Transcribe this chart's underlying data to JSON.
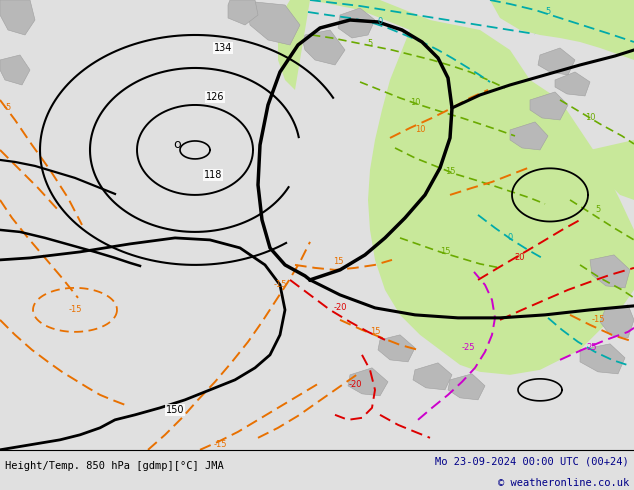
{
  "title_left": "Height/Temp. 850 hPa [gdmp][°C] JMA",
  "title_right": "Mo 23-09-2024 00:00 UTC (00+24)",
  "copyright": "© weatheronline.co.uk",
  "fig_width": 6.34,
  "fig_height": 4.9,
  "dpi": 100,
  "bg_color": "#e0e0e0",
  "map_bg_color": "#e8e8e8",
  "bottom_bar_color": "#ffffff",
  "label_fontsize": 7.5,
  "copyright_fontsize": 7.5,
  "title_fontsize": 7.5
}
